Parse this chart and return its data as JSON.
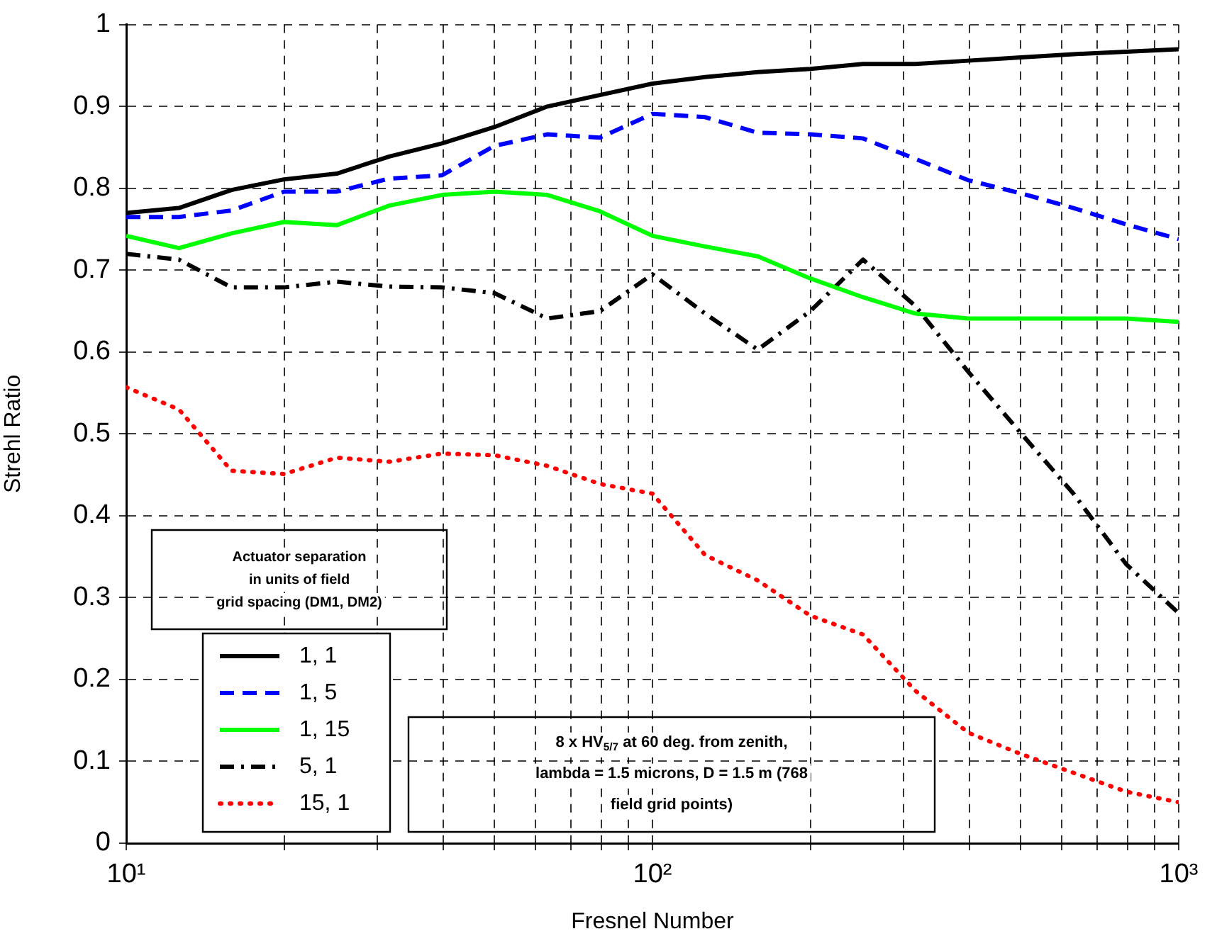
{
  "chart_data": {
    "type": "line",
    "xlabel": "Fresnel Number",
    "ylabel": "Strehl Ratio",
    "legend_title": "Actuator separation\nin units of field\ngrid spacing (DM1, DM2)",
    "legend": "bottom left",
    "grid": true,
    "marker": "none",
    "log": "x",
    "xlim": [
      10,
      1000
    ],
    "ylim": [
      0,
      1
    ],
    "xticks": [
      {
        "value": 10,
        "label": "10¹"
      },
      {
        "value": 20,
        "label": null
      },
      {
        "value": 30,
        "label": null
      },
      {
        "value": 40,
        "label": null
      },
      {
        "value": 50,
        "label": null
      },
      {
        "value": 60,
        "label": null
      },
      {
        "value": 70,
        "label": null
      },
      {
        "value": 80,
        "label": null
      },
      {
        "value": 90,
        "label": null
      },
      {
        "value": 100,
        "label": "10²"
      },
      {
        "value": 200,
        "label": null
      },
      {
        "value": 300,
        "label": null
      },
      {
        "value": 400,
        "label": null
      },
      {
        "value": 500,
        "label": null
      },
      {
        "value": 600,
        "label": null
      },
      {
        "value": 700,
        "label": null
      },
      {
        "value": 800,
        "label": null
      },
      {
        "value": 900,
        "label": null
      },
      {
        "value": 1000,
        "label": "10³"
      }
    ],
    "yticks": [
      0,
      0.1,
      0.2,
      0.3,
      0.4,
      0.5,
      0.6,
      0.7,
      0.8,
      0.9,
      1
    ],
    "x": [
      10,
      12.59,
      15.85,
      19.95,
      25.12,
      31.62,
      39.81,
      50.12,
      63.1,
      79.43,
      100,
      125.9,
      158.5,
      199.5,
      251.2,
      316.2,
      398.1,
      501.2,
      631,
      794.3,
      1000
    ],
    "series": [
      {
        "name": "1, 1",
        "color": "#000000",
        "line_style": "solid",
        "values": [
          0.77,
          0.776,
          0.798,
          0.811,
          0.818,
          0.839,
          0.855,
          0.875,
          0.9,
          0.914,
          0.928,
          0.936,
          0.942,
          0.946,
          0.952,
          0.952,
          0.956,
          0.96,
          0.964,
          0.967,
          0.97
        ]
      },
      {
        "name": "1, 5",
        "color": "#0000ff",
        "line_style": "dashed",
        "values": [
          0.765,
          0.765,
          0.773,
          0.796,
          0.796,
          0.812,
          0.816,
          0.852,
          0.866,
          0.862,
          0.891,
          0.887,
          0.868,
          0.866,
          0.861,
          0.836,
          0.81,
          0.794,
          0.776,
          0.756,
          0.738
        ]
      },
      {
        "name": "1, 15",
        "color": "#00ff00",
        "line_style": "solid",
        "values": [
          0.742,
          0.727,
          0.745,
          0.759,
          0.755,
          0.779,
          0.792,
          0.796,
          0.792,
          0.772,
          0.742,
          0.729,
          0.717,
          0.69,
          0.667,
          0.647,
          0.641,
          0.641,
          0.641,
          0.641,
          0.637
        ]
      },
      {
        "name": "5, 1",
        "color": "#000000",
        "line_style": "dashdot",
        "values": [
          0.72,
          0.713,
          0.679,
          0.679,
          0.686,
          0.68,
          0.679,
          0.672,
          0.641,
          0.65,
          0.695,
          0.647,
          0.603,
          0.65,
          0.713,
          0.656,
          0.576,
          0.501,
          0.427,
          0.341,
          0.281
        ]
      },
      {
        "name": "15, 1",
        "color": "#ff0000",
        "line_style": "dotted",
        "values": [
          0.557,
          0.53,
          0.455,
          0.451,
          0.471,
          0.466,
          0.476,
          0.474,
          0.461,
          0.439,
          0.427,
          0.352,
          0.321,
          0.278,
          0.255,
          0.186,
          0.135,
          0.109,
          0.086,
          0.063,
          0.05
        ]
      }
    ],
    "annotations": [
      "8 x HV$_{5/7}$ at 60 deg. from zenith,\nlambda = 1.5 microns, D = 1.5 m (768\nfield grid points)"
    ]
  }
}
